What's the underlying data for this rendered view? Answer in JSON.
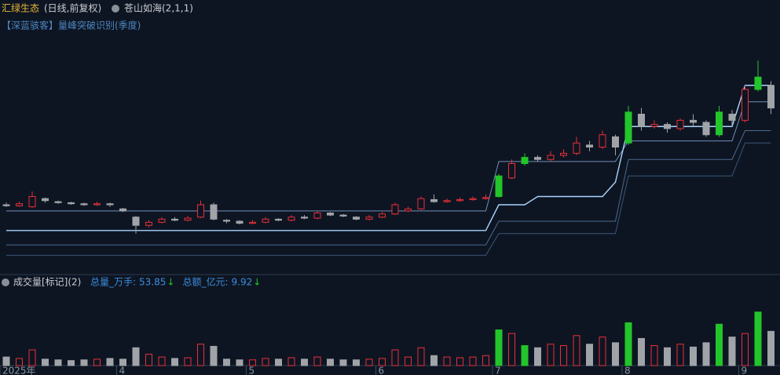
{
  "chart_data": {
    "type": "candlestick",
    "title": "汇绿生态",
    "subtitle": "(日线,前复权)",
    "indicator": "苍山如海(2,1,1)",
    "annotation": "【深蓝骇客】量峰突破识别(季度)",
    "volume_title": "成交量[标记](2)",
    "volume_stats": [
      {
        "label": "总量_万手:",
        "value": 53.85,
        "arrow": "↓"
      },
      {
        "label": "总额_亿元:",
        "value": 9.92,
        "arrow": "↓"
      }
    ],
    "categories": [
      "2025年",
      null,
      null,
      null,
      null,
      null,
      null,
      null,
      null,
      "4",
      null,
      null,
      null,
      null,
      null,
      null,
      null,
      null,
      null,
      "5",
      null,
      null,
      null,
      null,
      null,
      null,
      null,
      null,
      null,
      "6",
      null,
      null,
      null,
      null,
      null,
      null,
      null,
      null,
      "7",
      null,
      null,
      null,
      null,
      null,
      null,
      null,
      null,
      null,
      "8",
      null,
      null,
      null,
      null,
      null,
      null,
      null,
      null,
      "9",
      null,
      null
    ],
    "open": [
      8.2,
      8.15,
      8.1,
      8.5,
      8.35,
      8.3,
      8.25,
      8.2,
      8.25,
      8.0,
      7.6,
      7.2,
      7.35,
      7.5,
      7.45,
      7.6,
      8.2,
      7.45,
      7.4,
      7.3,
      7.35,
      7.5,
      7.45,
      7.6,
      7.55,
      7.8,
      7.7,
      7.6,
      7.5,
      7.6,
      7.75,
      7.9,
      8.0,
      8.45,
      8.35,
      8.4,
      8.45,
      8.5,
      8.6,
      9.5,
      10.2,
      10.5,
      10.4,
      10.6,
      10.7,
      11.1,
      11.0,
      11.5,
      11.2,
      12.6,
      12.0,
      12.1,
      11.9,
      12.3,
      12.2,
      11.6,
      12.6,
      12.3,
      13.8,
      14.0
    ],
    "close": [
      8.15,
      8.25,
      8.6,
      8.4,
      8.3,
      8.25,
      8.2,
      8.25,
      8.2,
      7.9,
      7.2,
      7.35,
      7.5,
      7.45,
      7.55,
      8.2,
      7.5,
      7.4,
      7.3,
      7.35,
      7.5,
      7.45,
      7.6,
      7.55,
      7.8,
      7.7,
      7.65,
      7.5,
      7.6,
      7.75,
      8.2,
      8.0,
      8.5,
      8.35,
      8.4,
      8.45,
      8.5,
      8.55,
      9.6,
      10.2,
      10.5,
      10.4,
      10.6,
      10.7,
      11.2,
      11.0,
      11.6,
      11.0,
      12.7,
      12.0,
      12.1,
      11.9,
      12.3,
      12.2,
      11.6,
      12.7,
      12.3,
      13.8,
      14.4,
      12.9
    ],
    "high": [
      8.3,
      8.35,
      8.85,
      8.55,
      8.4,
      8.35,
      8.3,
      8.35,
      8.3,
      8.05,
      7.65,
      7.45,
      7.6,
      7.6,
      7.65,
      8.4,
      8.3,
      7.5,
      7.45,
      7.45,
      7.6,
      7.55,
      7.7,
      7.7,
      7.9,
      7.85,
      7.75,
      7.65,
      7.7,
      7.85,
      8.3,
      8.1,
      8.6,
      8.7,
      8.5,
      8.55,
      8.6,
      8.7,
      9.7,
      10.4,
      10.7,
      10.6,
      10.8,
      10.9,
      11.5,
      11.3,
      11.8,
      11.6,
      13.0,
      12.9,
      12.3,
      12.2,
      12.4,
      12.6,
      12.3,
      13.0,
      12.8,
      14.0,
      15.2,
      14.2
    ],
    "low": [
      8.1,
      8.1,
      8.05,
      8.3,
      8.25,
      8.2,
      8.15,
      8.15,
      8.1,
      7.85,
      6.8,
      7.1,
      7.3,
      7.4,
      7.4,
      7.55,
      7.45,
      7.3,
      7.25,
      7.25,
      7.3,
      7.4,
      7.4,
      7.5,
      7.5,
      7.65,
      7.6,
      7.45,
      7.45,
      7.55,
      7.7,
      7.85,
      7.95,
      8.3,
      8.3,
      8.35,
      8.4,
      8.45,
      8.55,
      9.45,
      10.1,
      10.3,
      10.3,
      10.5,
      10.6,
      10.8,
      10.9,
      10.6,
      11.1,
      11.8,
      11.9,
      11.7,
      11.8,
      12.0,
      11.5,
      11.5,
      12.0,
      12.2,
      13.7,
      12.6
    ],
    "up_color": "#e8303a",
    "down_color": "#a0a4a8",
    "lines": [
      {
        "color": "#6f8fb8",
        "values": [
          7.9,
          7.9,
          7.9,
          7.9,
          7.9,
          7.9,
          7.9,
          7.9,
          7.9,
          7.9,
          7.9,
          7.9,
          7.9,
          7.9,
          7.9,
          7.9,
          7.9,
          7.9,
          7.9,
          7.9,
          7.9,
          7.9,
          7.9,
          7.9,
          7.9,
          7.9,
          7.9,
          7.9,
          7.9,
          7.9,
          7.9,
          7.9,
          7.9,
          7.9,
          7.9,
          7.9,
          7.9,
          7.9,
          10.3,
          10.3,
          10.3,
          10.3,
          10.3,
          10.3,
          10.3,
          10.3,
          10.3,
          10.3,
          11.3,
          11.3,
          11.3,
          11.3,
          11.3,
          11.3,
          11.3,
          11.3,
          11.3,
          13.2,
          13.2,
          13.2
        ]
      },
      {
        "color": "#a8d4ff",
        "values": [
          6.95,
          6.95,
          6.95,
          6.95,
          6.95,
          6.95,
          6.95,
          6.95,
          6.95,
          6.95,
          6.95,
          6.95,
          6.95,
          6.95,
          6.95,
          6.95,
          6.95,
          6.95,
          6.95,
          6.95,
          6.95,
          6.95,
          6.95,
          6.95,
          6.95,
          6.95,
          6.95,
          6.95,
          6.95,
          6.95,
          6.95,
          6.95,
          6.95,
          6.95,
          6.95,
          6.95,
          6.95,
          6.95,
          8.2,
          8.2,
          8.2,
          8.6,
          8.6,
          8.6,
          8.6,
          8.6,
          8.6,
          9.3,
          12.0,
          12.0,
          12.0,
          12.0,
          12.0,
          12.0,
          12.0,
          12.0,
          12.0,
          14.0,
          14.0,
          14.0
        ]
      },
      {
        "color": "#4a6a90",
        "values": [
          6.25,
          6.25,
          6.25,
          6.25,
          6.25,
          6.25,
          6.25,
          6.25,
          6.25,
          6.25,
          6.25,
          6.25,
          6.25,
          6.25,
          6.25,
          6.25,
          6.25,
          6.25,
          6.25,
          6.25,
          6.25,
          6.25,
          6.25,
          6.25,
          6.25,
          6.25,
          6.25,
          6.25,
          6.25,
          6.25,
          6.25,
          6.25,
          6.25,
          6.25,
          6.25,
          6.25,
          6.25,
          6.25,
          7.4,
          7.4,
          7.4,
          7.4,
          7.4,
          7.4,
          7.4,
          7.4,
          7.4,
          7.4,
          10.4,
          10.4,
          10.4,
          10.4,
          10.4,
          10.4,
          10.4,
          10.4,
          10.4,
          11.8,
          11.8,
          11.8
        ]
      },
      {
        "color": "#3a5678",
        "values": [
          5.75,
          5.75,
          5.75,
          5.75,
          5.75,
          5.75,
          5.75,
          5.75,
          5.75,
          5.75,
          5.75,
          5.75,
          5.75,
          5.75,
          5.75,
          5.75,
          5.75,
          5.75,
          5.75,
          5.75,
          5.75,
          5.75,
          5.75,
          5.75,
          5.75,
          5.75,
          5.75,
          5.75,
          5.75,
          5.75,
          5.75,
          5.75,
          5.75,
          5.75,
          5.75,
          5.75,
          5.75,
          5.75,
          6.8,
          6.8,
          6.8,
          6.8,
          6.8,
          6.8,
          6.8,
          6.8,
          6.8,
          6.8,
          9.6,
          9.6,
          9.6,
          9.6,
          9.6,
          9.6,
          9.6,
          9.6,
          9.6,
          11.2,
          11.2,
          11.2
        ]
      }
    ],
    "ylim": [
      5,
      17
    ],
    "volume": [
      12,
      10,
      22,
      9,
      8,
      7,
      8,
      9,
      10,
      9,
      25,
      16,
      12,
      10,
      11,
      30,
      27,
      9,
      8,
      8,
      10,
      9,
      11,
      9,
      12,
      9,
      8,
      8,
      9,
      10,
      22,
      12,
      25,
      14,
      12,
      11,
      12,
      14,
      50,
      45,
      28,
      25,
      30,
      28,
      42,
      30,
      40,
      32,
      60,
      38,
      28,
      25,
      30,
      26,
      32,
      58,
      40,
      45,
      75,
      48
    ],
    "volume_ylim": [
      0,
      100
    ],
    "highlight_color": "#22c52a",
    "highlight": [
      38,
      40,
      48,
      55,
      58
    ]
  }
}
